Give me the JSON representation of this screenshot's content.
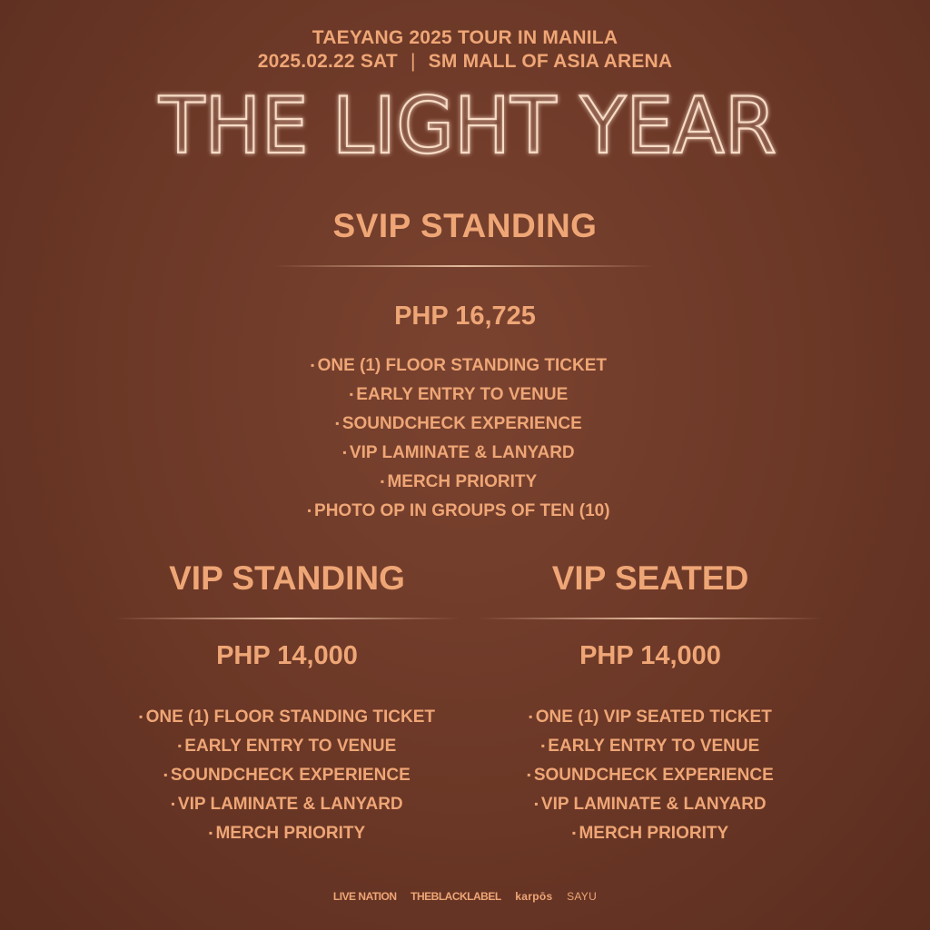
{
  "header": {
    "line1": "TAEYANG 2025 TOUR IN MANILA",
    "date": "2025.02.22 SAT",
    "separator": "|",
    "venue": "SM MALL OF ASIA ARENA"
  },
  "logo_title": "THE LIGHT YEAR",
  "tiers": [
    {
      "name": "SVIP STANDING",
      "price": "PHP 16,725",
      "perks": [
        "ONE (1) FLOOR STANDING TICKET",
        "EARLY ENTRY TO VENUE",
        "SOUNDCHECK EXPERIENCE",
        "VIP LAMINATE & LANYARD",
        "MERCH PRIORITY",
        "PHOTO OP IN GROUPS OF TEN (10)"
      ]
    },
    {
      "name": "VIP STANDING",
      "price": "PHP 14,000",
      "perks": [
        "ONE (1) FLOOR STANDING TICKET",
        "EARLY ENTRY TO VENUE",
        "SOUNDCHECK EXPERIENCE",
        "VIP LAMINATE & LANYARD",
        "MERCH PRIORITY"
      ]
    },
    {
      "name": "VIP SEATED",
      "price": "PHP 14,000",
      "perks": [
        "ONE (1) VIP SEATED TICKET",
        "EARLY ENTRY TO VENUE",
        "SOUNDCHECK EXPERIENCE",
        "VIP LAMINATE & LANYARD",
        "MERCH PRIORITY"
      ]
    }
  ],
  "sponsors": [
    "LIVE NATION",
    "THEBLACKLABEL",
    "karpōs",
    "SAYU"
  ],
  "colors": {
    "text": "#efa676",
    "background": "#6b3726"
  }
}
